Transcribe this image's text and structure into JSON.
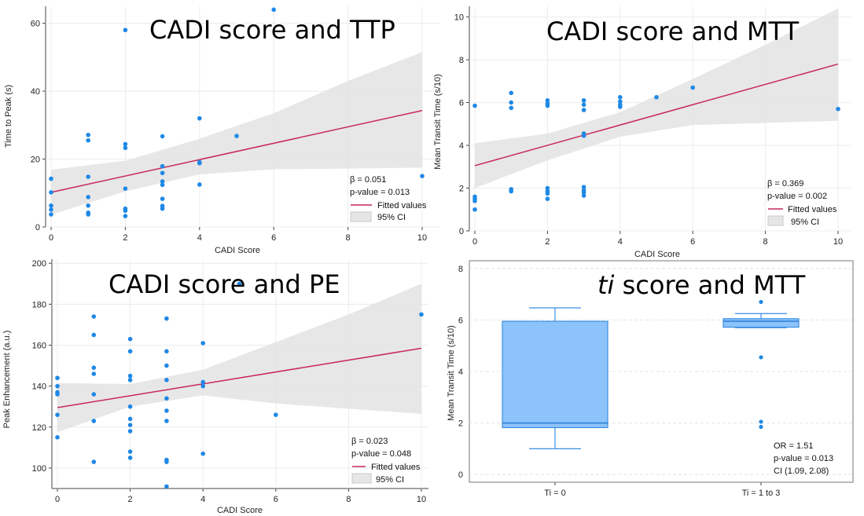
{
  "chart_data": [
    {
      "type": "scatter",
      "title": "CADI score and TTP",
      "xlabel": "CADI Score",
      "ylabel": "Time to Peak (s)",
      "xlim": [
        0,
        10
      ],
      "ylim": [
        0,
        65
      ],
      "x_ticks": [
        0,
        2,
        4,
        6,
        8,
        10
      ],
      "y_ticks": [
        0,
        20,
        40,
        60
      ],
      "grid": true,
      "points": [
        {
          "x": 0,
          "y": 14.2
        },
        {
          "x": 0,
          "y": 10.2
        },
        {
          "x": 0,
          "y": 6.3
        },
        {
          "x": 0,
          "y": 5.1
        },
        {
          "x": 0,
          "y": 3.7
        },
        {
          "x": 1,
          "y": 27.1
        },
        {
          "x": 1,
          "y": 25.5
        },
        {
          "x": 1,
          "y": 14.8
        },
        {
          "x": 1,
          "y": 8.8
        },
        {
          "x": 1,
          "y": 6.3
        },
        {
          "x": 1,
          "y": 4.2
        },
        {
          "x": 1,
          "y": 3.7
        },
        {
          "x": 2,
          "y": 58
        },
        {
          "x": 2,
          "y": 24.4
        },
        {
          "x": 2,
          "y": 23.3
        },
        {
          "x": 2,
          "y": 11.3
        },
        {
          "x": 2,
          "y": 5.4
        },
        {
          "x": 2,
          "y": 4.8
        },
        {
          "x": 2,
          "y": 3.2
        },
        {
          "x": 3,
          "y": 26.7
        },
        {
          "x": 3,
          "y": 17.9
        },
        {
          "x": 3,
          "y": 15.9
        },
        {
          "x": 3,
          "y": 13.4
        },
        {
          "x": 3,
          "y": 12.4
        },
        {
          "x": 3,
          "y": 8.3
        },
        {
          "x": 3,
          "y": 6.2
        },
        {
          "x": 3,
          "y": 5.4
        },
        {
          "x": 4,
          "y": 32
        },
        {
          "x": 4,
          "y": 19.1
        },
        {
          "x": 4,
          "y": 18.8
        },
        {
          "x": 4,
          "y": 12.5
        },
        {
          "x": 5,
          "y": 26.8
        },
        {
          "x": 6,
          "y": 64
        },
        {
          "x": 10,
          "y": 15
        }
      ],
      "fit": {
        "y_at_xmin": 10.2,
        "y_at_xmax": 34.3
      },
      "ci": {
        "x": [
          0,
          2,
          4,
          6,
          8,
          10
        ],
        "lower": [
          3.6,
          10.5,
          15.5,
          17.0,
          17.2,
          17.5
        ],
        "upper": [
          16.9,
          19.5,
          26.0,
          33.5,
          43.0,
          51.5
        ]
      },
      "stats": [
        "β = 0.051",
        "p-value = 0.013"
      ],
      "legend": {
        "position": "bottom-right",
        "entries": [
          "Fitted values",
          "95% CI"
        ]
      }
    },
    {
      "type": "scatter",
      "title": "CADI score and MTT",
      "xlabel": "CADI Score",
      "ylabel": "Mean Transit Time (s/10)",
      "xlim": [
        0,
        10
      ],
      "ylim": [
        0,
        10.5
      ],
      "x_ticks": [
        0,
        2,
        4,
        6,
        8,
        10
      ],
      "y_ticks": [
        0,
        2,
        4,
        6,
        8,
        10
      ],
      "grid": true,
      "points": [
        {
          "x": 0,
          "y": 5.85
        },
        {
          "x": 0,
          "y": 1.6
        },
        {
          "x": 0,
          "y": 1.5
        },
        {
          "x": 0,
          "y": 1.4
        },
        {
          "x": 0,
          "y": 1.0
        },
        {
          "x": 1,
          "y": 6.45
        },
        {
          "x": 1,
          "y": 6.0
        },
        {
          "x": 1,
          "y": 5.75
        },
        {
          "x": 1,
          "y": 1.95
        },
        {
          "x": 1,
          "y": 1.85
        },
        {
          "x": 2,
          "y": 6.1
        },
        {
          "x": 2,
          "y": 5.95
        },
        {
          "x": 2,
          "y": 5.85
        },
        {
          "x": 2,
          "y": 2.0
        },
        {
          "x": 2,
          "y": 1.85
        },
        {
          "x": 2,
          "y": 1.75
        },
        {
          "x": 2,
          "y": 1.5
        },
        {
          "x": 3,
          "y": 6.1
        },
        {
          "x": 3,
          "y": 5.9
        },
        {
          "x": 3,
          "y": 5.65
        },
        {
          "x": 3,
          "y": 4.55
        },
        {
          "x": 3,
          "y": 4.45
        },
        {
          "x": 3,
          "y": 2.05
        },
        {
          "x": 3,
          "y": 1.9
        },
        {
          "x": 3,
          "y": 1.8
        },
        {
          "x": 3,
          "y": 1.65
        },
        {
          "x": 4,
          "y": 6.25
        },
        {
          "x": 4,
          "y": 6.05
        },
        {
          "x": 4,
          "y": 5.9
        },
        {
          "x": 4,
          "y": 5.8
        },
        {
          "x": 5,
          "y": 6.25
        },
        {
          "x": 6,
          "y": 6.7
        },
        {
          "x": 10,
          "y": 5.7
        }
      ],
      "fit": {
        "y_at_xmin": 3.05,
        "y_at_xmax": 7.8
      },
      "ci": {
        "x": [
          0,
          2,
          4,
          6,
          8,
          10
        ],
        "lower": [
          2.0,
          3.3,
          4.4,
          4.95,
          5.05,
          5.15
        ],
        "upper": [
          4.1,
          4.55,
          5.55,
          7.1,
          8.7,
          10.4
        ]
      },
      "stats": [
        "β = 0.369",
        "p-value = 0.002"
      ],
      "legend": {
        "position": "bottom-right",
        "entries": [
          "Fitted values",
          "95% CI"
        ]
      }
    },
    {
      "type": "scatter",
      "title": "CADI score and PE",
      "xlabel": "CADI Score",
      "ylabel": "Peak Enhancement (a.u.)",
      "xlim": [
        0,
        10
      ],
      "ylim": [
        90,
        202
      ],
      "x_ticks": [
        0,
        2,
        4,
        6,
        8,
        10
      ],
      "y_ticks": [
        100,
        120,
        140,
        160,
        180,
        200
      ],
      "grid": true,
      "points": [
        {
          "x": 0,
          "y": 144
        },
        {
          "x": 0,
          "y": 140
        },
        {
          "x": 0,
          "y": 137
        },
        {
          "x": 0,
          "y": 136
        },
        {
          "x": 0,
          "y": 126
        },
        {
          "x": 0,
          "y": 115
        },
        {
          "x": 1,
          "y": 174
        },
        {
          "x": 1,
          "y": 165
        },
        {
          "x": 1,
          "y": 149
        },
        {
          "x": 1,
          "y": 146
        },
        {
          "x": 1,
          "y": 136
        },
        {
          "x": 1,
          "y": 123
        },
        {
          "x": 1,
          "y": 103
        },
        {
          "x": 2,
          "y": 163
        },
        {
          "x": 2,
          "y": 157
        },
        {
          "x": 2,
          "y": 145
        },
        {
          "x": 2,
          "y": 143
        },
        {
          "x": 2,
          "y": 130
        },
        {
          "x": 2,
          "y": 124
        },
        {
          "x": 2,
          "y": 121
        },
        {
          "x": 2,
          "y": 118
        },
        {
          "x": 2,
          "y": 108
        },
        {
          "x": 2,
          "y": 105
        },
        {
          "x": 3,
          "y": 173
        },
        {
          "x": 3,
          "y": 157
        },
        {
          "x": 3,
          "y": 150
        },
        {
          "x": 3,
          "y": 143
        },
        {
          "x": 3,
          "y": 134
        },
        {
          "x": 3,
          "y": 128
        },
        {
          "x": 3,
          "y": 123
        },
        {
          "x": 3,
          "y": 104
        },
        {
          "x": 3,
          "y": 103
        },
        {
          "x": 3,
          "y": 91
        },
        {
          "x": 4,
          "y": 161
        },
        {
          "x": 4,
          "y": 142
        },
        {
          "x": 4,
          "y": 140
        },
        {
          "x": 4,
          "y": 107
        },
        {
          "x": 5,
          "y": 190
        },
        {
          "x": 6,
          "y": 126
        },
        {
          "x": 10,
          "y": 175
        }
      ],
      "fit": {
        "y_at_xmin": 129.5,
        "y_at_xmax": 158.5
      },
      "ci": {
        "x": [
          0,
          2,
          4,
          6,
          8,
          10
        ],
        "lower": [
          117.5,
          130.0,
          135.5,
          131.5,
          129.0,
          126.5
        ],
        "upper": [
          141.5,
          141.0,
          148.0,
          161.5,
          175.0,
          190.0
        ]
      },
      "stats": [
        "β = 0.023",
        "p-value = 0.048"
      ],
      "legend": {
        "position": "bottom-right",
        "entries": [
          "Fitted values",
          "95% CI"
        ]
      }
    },
    {
      "type": "box",
      "title": "ti score and MTT",
      "title_italic": "ti",
      "title_rest": " score and MTT",
      "ylabel": "Mean Transit Time (s/10)",
      "ylim": [
        -0.3,
        8.3
      ],
      "y_ticks": [
        0,
        2,
        4,
        6,
        8
      ],
      "categories": [
        "Ti = 0",
        "Ti = 1 to 3"
      ],
      "boxes": [
        {
          "min": 1.0,
          "q1": 1.82,
          "median": 2.0,
          "q3": 5.95,
          "max": 6.47,
          "outliers": []
        },
        {
          "min": 5.7,
          "q1": 5.72,
          "median": 5.95,
          "q3": 6.05,
          "max": 6.25,
          "outliers": [
            6.7,
            4.55,
            2.05,
            1.85
          ]
        }
      ],
      "stats": [
        "OR = 1.51",
        "p-value = 0.013",
        "CI (1.09, 2.08)"
      ]
    }
  ]
}
